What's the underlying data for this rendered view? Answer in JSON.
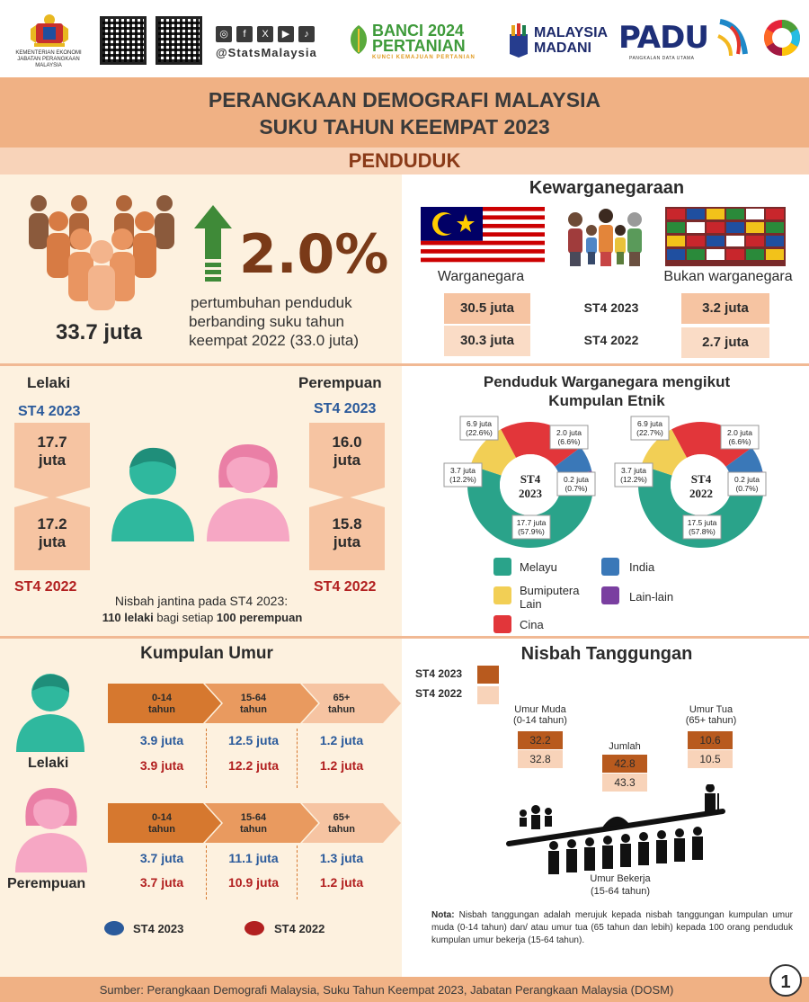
{
  "header": {
    "ministry_line1": "KEMENTERIAN EKONOMI",
    "ministry_line2": "JABATAN PERANGKAAN MALAYSIA",
    "social_handle": "@StatsMalaysia",
    "banci_line1": "BANCI 2024",
    "banci_line2": "PERTANIAN",
    "banci_tagline": "KUNCI KEMAJUAN PERTANIAN",
    "madani_line1": "MALAYSIA",
    "madani_line2": "MADANI",
    "padu": "PADU",
    "padu_sub": "PANGKALAN DATA UTAMA"
  },
  "title": {
    "line1": "PERANGKAAN DEMOGRAFI MALAYSIA",
    "line2": "SUKU TAHUN KEEMPAT 2023",
    "section": "PENDUDUK"
  },
  "population": {
    "total": "33.7 juta",
    "growth": "2.0%",
    "growth_desc_1": "pertumbuhan penduduk",
    "growth_desc_2": "berbanding suku tahun",
    "growth_desc_3": "keempat 2022 (33.0 juta)"
  },
  "citizenship": {
    "title": "Kewarganegaraan",
    "citizen_label": "Warganegara",
    "noncitizen_label": "Bukan warganegara",
    "rows": [
      {
        "period": "ST4 2023",
        "citizen": "30.5 juta",
        "noncitizen": "3.2 juta"
      },
      {
        "period": "ST4 2022",
        "citizen": "30.3 juta",
        "noncitizen": "2.7 juta"
      }
    ]
  },
  "gender": {
    "male_label": "Lelaki",
    "female_label": "Perempuan",
    "period_2023": "ST4 2023",
    "period_2022": "ST4 2022",
    "male_2023_a": "17.7",
    "male_2023_b": "juta",
    "male_2022_a": "17.2",
    "male_2022_b": "juta",
    "female_2023_a": "16.0",
    "female_2023_b": "juta",
    "female_2022_a": "15.8",
    "female_2022_b": "juta",
    "ratio_text": "Nisbah jantina pada ST4 2023:",
    "ratio_male": "110 lelaki",
    "ratio_mid": " bagi setiap ",
    "ratio_female": "100 perempuan"
  },
  "ethnic": {
    "title_1": "Penduduk Warganegara mengikut",
    "title_2": "Kumpulan Etnik",
    "legend": [
      {
        "label": "Melayu",
        "color": "#2aa38a"
      },
      {
        "label": "India",
        "color": "#3a78b8"
      },
      {
        "label": "Bumiputera Lain",
        "color": "#f2cf55"
      },
      {
        "label": "Lain-lain",
        "color": "#7a3fa0"
      },
      {
        "label": "Cina",
        "color": "#e2363a"
      }
    ],
    "legend_bumi_1": "Bumiputera",
    "legend_bumi_2": "Lain"
  },
  "chart_data": [
    {
      "type": "pie",
      "title": "ST4 2023",
      "center_1": "ST4",
      "center_2": "2023",
      "categories": [
        "Melayu",
        "Bumiputera Lain",
        "Cina",
        "India",
        "Lain-lain"
      ],
      "values_juta": [
        17.7,
        3.7,
        6.9,
        2.0,
        0.2
      ],
      "percent": [
        57.9,
        12.2,
        22.6,
        6.6,
        0.7
      ],
      "labels": [
        "17.7 juta\n(57.9%)",
        "3.7 juta\n(12.2%)",
        "6.9 juta\n(22.6%)",
        "2.0 juta\n(6.6%)",
        "0.2 juta\n(0.7%)"
      ]
    },
    {
      "type": "pie",
      "title": "ST4 2022",
      "center_1": "ST4",
      "center_2": "2022",
      "categories": [
        "Melayu",
        "Bumiputera Lain",
        "Cina",
        "India",
        "Lain-lain"
      ],
      "values_juta": [
        17.5,
        3.7,
        6.9,
        2.0,
        0.2
      ],
      "percent": [
        57.8,
        12.2,
        22.7,
        6.6,
        0.7
      ],
      "labels": [
        "17.5 juta\n(57.8%)",
        "3.7 juta\n(12.2%)",
        "6.9 juta\n(22.7%)",
        "2.0 juta\n(6.6%)",
        "0.2 juta\n(0.7%)"
      ]
    }
  ],
  "age": {
    "title": "Kumpulan Umur",
    "groups": [
      {
        "range": "0-14",
        "unit": "tahun"
      },
      {
        "range": "15-64",
        "unit": "tahun"
      },
      {
        "range": "65+",
        "unit": "tahun"
      }
    ],
    "male_label": "Lelaki",
    "female_label": "Perempuan",
    "male_2023": [
      "3.9 juta",
      "12.5 juta",
      "1.2 juta"
    ],
    "male_2022": [
      "3.9 juta",
      "12.2 juta",
      "1.2 juta"
    ],
    "female_2023": [
      "3.7 juta",
      "11.1 juta",
      "1.3 juta"
    ],
    "female_2022": [
      "3.7 juta",
      "10.9 juta",
      "1.2 juta"
    ],
    "legend_2023": "ST4 2023",
    "legend_2022": "ST4 2022"
  },
  "dependency": {
    "title": "Nisbah Tanggungan",
    "legend_2023": "ST4 2023",
    "legend_2022": "ST4 2022",
    "young_label_1": "Umur Muda",
    "young_label_2": "(0-14 tahun)",
    "young_2023": "32.2",
    "young_2022": "32.8",
    "total_label": "Jumlah",
    "total_2023": "42.8",
    "total_2022": "43.3",
    "old_label_1": "Umur Tua",
    "old_label_2": "(65+ tahun)",
    "old_2023": "10.6",
    "old_2022": "10.5",
    "working_label_1": "Umur Bekerja",
    "working_label_2": "(15-64 tahun)",
    "note_label": "Nota:",
    "note_text": "Nisbah tanggungan adalah merujuk kepada nisbah tanggungan kumpulan umur muda (0-14 tahun) dan/ atau umur tua (65 tahun dan lebih) kepada 100 orang penduduk kumpulan umur bekerja (15-64 tahun)."
  },
  "footer": {
    "source": "Sumber: Perangkaan Demografi Malaysia, Suku Tahun Keempat 2023, Jabatan Perangkaan Malaysia (DOSM)",
    "page": "1"
  }
}
